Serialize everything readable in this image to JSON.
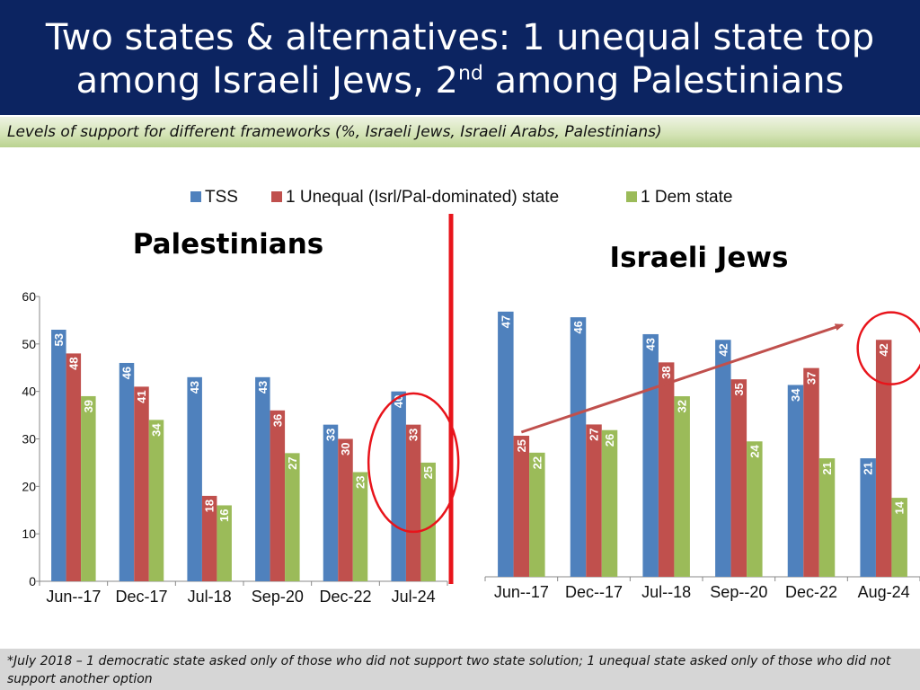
{
  "slide": {
    "title_line1": "Two states & alternatives: 1 unequal state top",
    "title_line2_pre": "among Israeli Jews, 2",
    "title_line2_sup": "nd",
    "title_line2_post": " among Palestinians",
    "subtitle": "Levels of support for different frameworks (%, Israeli Jews, Israeli Arabs, Palestinians)",
    "footnote": "*July 2018 – 1 democratic state asked only of those who did not support two state solution; 1 unequal state asked only of those who did not support another option"
  },
  "legend": [
    {
      "label": "TSS",
      "color": "#4f81bd"
    },
    {
      "label": "1 Unequal (Isrl/Pal-dominated) state",
      "color": "#c0504d"
    },
    {
      "label": "1 Dem state",
      "color": "#9bbb59"
    }
  ],
  "colors": {
    "divider": "#e8141b",
    "annotation": "#e8141b",
    "arrow": "#c0504d",
    "axis": "#888888",
    "value_label": "#ffffff"
  },
  "chart_data": [
    {
      "type": "bar",
      "title": "Palestinians",
      "categories": [
        "Jun--17",
        "Dec-17",
        "Jul-18",
        "Sep-20",
        "Dec-22",
        "Jul-24"
      ],
      "series": [
        {
          "name": "TSS",
          "values": [
            53,
            46,
            43,
            43,
            33,
            40
          ]
        },
        {
          "name": "1 Unequal (Isrl/Pal-dominated) state",
          "values": [
            48,
            41,
            18,
            36,
            30,
            33
          ]
        },
        {
          "name": "1 Dem state",
          "values": [
            39,
            34,
            16,
            27,
            23,
            25
          ]
        }
      ],
      "yticks": [
        "0",
        "10",
        "20",
        "30",
        "40",
        "50",
        "60"
      ],
      "ylim": [
        0,
        60
      ],
      "y_axis_visible": true,
      "annotation": "circle around Jul-24",
      "legend": "top"
    },
    {
      "type": "bar",
      "title": "Israeli Jews",
      "categories": [
        "Jun--17",
        "Dec--17",
        "Jul--18",
        "Sep--20",
        "Dec-22",
        "Aug-24"
      ],
      "series": [
        {
          "name": "TSS",
          "values": [
            47,
            46,
            43,
            42,
            34,
            21
          ]
        },
        {
          "name": "1 Unequal (Isrl/Pal-dominated) state",
          "values": [
            25,
            27,
            38,
            35,
            37,
            42
          ]
        },
        {
          "name": "1 Dem state",
          "values": [
            22,
            26,
            32,
            24,
            21,
            14
          ]
        }
      ],
      "ylim": [
        0,
        50
      ],
      "y_axis_visible": false,
      "annotation": "circle around Aug-24 unequal-state bar; arrow from Jun--17 to Aug-24 unequal-state bar",
      "legend": "top"
    }
  ]
}
